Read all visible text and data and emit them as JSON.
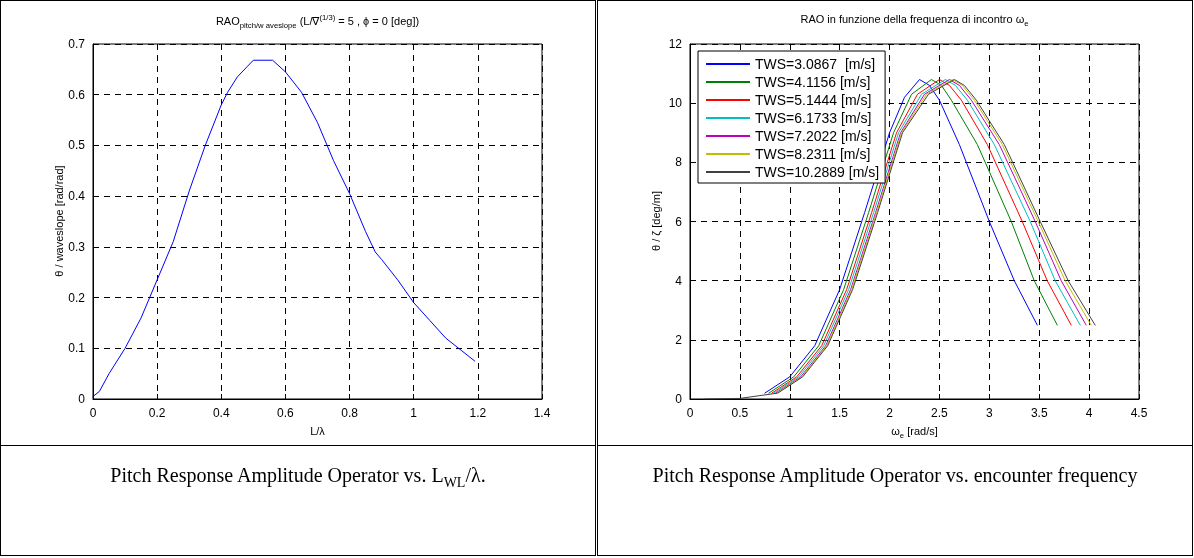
{
  "chart_data": [
    {
      "type": "line",
      "title": "RAO$_{pitch/w aveslope}$   (L/∇$^{(1/3)}$ = 5  ,  ϕ = 0 [deg])",
      "xlabel": "L/λ",
      "ylabel": "θ / waveslope [rad/rad]",
      "x": [
        0,
        0.02,
        0.05,
        0.1,
        0.15,
        0.2,
        0.25,
        0.3,
        0.35,
        0.4,
        0.42,
        0.45,
        0.48,
        0.5,
        0.56,
        0.6,
        0.65,
        0.7,
        0.75,
        0.8,
        0.85,
        0.88,
        0.9,
        0.95,
        1.0,
        1.05,
        1.1,
        1.15,
        1.19
      ],
      "series": [
        {
          "color": "#0000ff",
          "values": [
            0.005,
            0.015,
            0.05,
            0.1,
            0.16,
            0.235,
            0.31,
            0.41,
            0.5,
            0.58,
            0.605,
            0.635,
            0.655,
            0.668,
            0.668,
            0.645,
            0.605,
            0.545,
            0.47,
            0.405,
            0.33,
            0.29,
            0.275,
            0.235,
            0.19,
            0.155,
            0.12,
            0.095,
            0.075
          ]
        }
      ],
      "xlim": [
        0,
        1.4
      ],
      "xticks": [
        0,
        0.2,
        0.4,
        0.6,
        0.8,
        1,
        1.2,
        1.4
      ],
      "ylim": [
        0,
        0.7
      ],
      "yticks": [
        0,
        0.1,
        0.2,
        0.3,
        0.4,
        0.5,
        0.6,
        0.7
      ],
      "grid": true,
      "marker": "none",
      "line_style": "solid",
      "annotations": [
        "Pitch Response Amplitude Operator vs. L$_{WL}$/λ."
      ]
    },
    {
      "type": "line",
      "title": "RAO in funzione della frequenza di incontro ω$_{e}$",
      "xlabel": "ω$_{e}$   [rad/s]",
      "ylabel": "θ / ζ     [deg/m]",
      "series": [
        {
          "name": "TWS=3.0867  [m/s]",
          "color": "#0000ff",
          "x": [
            0.75,
            1,
            1.25,
            1.5,
            1.75,
            2.0,
            2.15,
            2.3,
            2.4,
            2.5,
            2.7,
            3.0,
            3.25,
            3.48
          ],
          "values": [
            0.2,
            0.75,
            1.8,
            3.7,
            6.3,
            9.0,
            10.2,
            10.8,
            10.6,
            10.1,
            8.6,
            6.0,
            4.0,
            2.5
          ]
        },
        {
          "name": "TWS=4.1156 [m/s]",
          "color": "#008000",
          "x": [
            0.79,
            1.04,
            1.29,
            1.54,
            1.79,
            2.04,
            2.22,
            2.42,
            2.52,
            2.62,
            2.88,
            3.22,
            3.45,
            3.68
          ],
          "values": [
            0.2,
            0.75,
            1.8,
            3.7,
            6.3,
            9.0,
            10.3,
            10.8,
            10.6,
            10.1,
            8.6,
            6.0,
            4.0,
            2.5
          ]
        },
        {
          "name": "TWS=5.1444 [m/s]",
          "color": "#ff0000",
          "x": [
            0.82,
            1.07,
            1.32,
            1.57,
            1.82,
            2.07,
            2.28,
            2.5,
            2.6,
            2.72,
            2.98,
            3.33,
            3.58,
            3.82
          ],
          "values": [
            0.2,
            0.75,
            1.8,
            3.7,
            6.3,
            9.0,
            10.3,
            10.8,
            10.6,
            10.1,
            8.6,
            6.0,
            4.0,
            2.5
          ]
        },
        {
          "name": "TWS=6.1733 [m/s]",
          "color": "#00bfbf",
          "x": [
            0.84,
            1.09,
            1.34,
            1.59,
            1.84,
            2.09,
            2.32,
            2.56,
            2.66,
            2.78,
            3.05,
            3.41,
            3.66,
            3.91
          ],
          "values": [
            0.2,
            0.75,
            1.8,
            3.7,
            6.3,
            9.0,
            10.3,
            10.8,
            10.6,
            10.1,
            8.6,
            6.0,
            4.0,
            2.5
          ]
        },
        {
          "name": "TWS=7.2022 [m/s]",
          "color": "#bf00bf",
          "x": [
            0.86,
            1.11,
            1.36,
            1.61,
            1.86,
            2.11,
            2.35,
            2.6,
            2.7,
            2.82,
            3.1,
            3.46,
            3.72,
            3.97
          ],
          "values": [
            0.2,
            0.75,
            1.8,
            3.7,
            6.3,
            9.0,
            10.3,
            10.8,
            10.6,
            10.1,
            8.6,
            6.0,
            4.0,
            2.5
          ]
        },
        {
          "name": "TWS=8.2311 [m/s]",
          "color": "#bfbf00",
          "x": [
            0.87,
            1.12,
            1.37,
            1.62,
            1.87,
            2.12,
            2.37,
            2.63,
            2.73,
            2.85,
            3.13,
            3.49,
            3.76,
            4.02
          ],
          "values": [
            0.2,
            0.75,
            1.8,
            3.7,
            6.3,
            9.0,
            10.3,
            10.8,
            10.6,
            10.1,
            8.6,
            6.0,
            4.0,
            2.5
          ]
        },
        {
          "name": "TWS=10.2889 [m/s]",
          "color": "#404040",
          "x": [
            0.15,
            0.5,
            0.88,
            1.13,
            1.38,
            1.63,
            1.88,
            2.13,
            2.39,
            2.65,
            2.75,
            2.87,
            3.15,
            3.51,
            3.79,
            4.06
          ],
          "values": [
            0,
            0.02,
            0.2,
            0.75,
            1.8,
            3.7,
            6.3,
            9.0,
            10.3,
            10.8,
            10.6,
            10.1,
            8.6,
            6.0,
            4.0,
            2.5
          ]
        }
      ],
      "xlim": [
        0,
        4.5
      ],
      "xticks": [
        0,
        0.5,
        1,
        1.5,
        2,
        2.5,
        3,
        3.5,
        4,
        4.5
      ],
      "ylim": [
        0,
        12
      ],
      "yticks": [
        0,
        2,
        4,
        6,
        8,
        10,
        12
      ],
      "grid": true,
      "legend": "top left",
      "marker": "none",
      "line_style": "solid",
      "annotations": [
        "Pitch Response Amplitude Operator vs. encounter frequency"
      ]
    }
  ]
}
